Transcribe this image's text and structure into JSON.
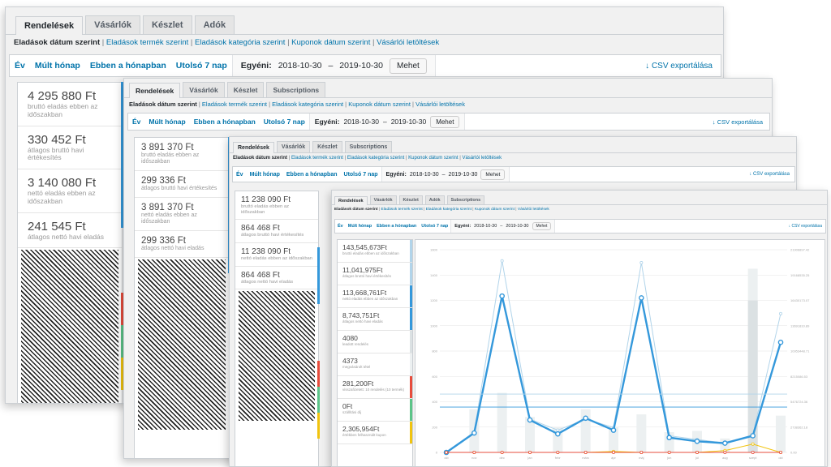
{
  "tabs": {
    "orders": "Rendelések",
    "customers": "Vásárlók",
    "stock": "Készlet",
    "taxes": "Adók",
    "subscriptions": "Subscriptions"
  },
  "subnav": {
    "by_date": "Eladások dátum szerint",
    "by_product": "Eladások termék szerint",
    "by_category": "Eladások kategória szerint",
    "coupons_by_date": "Kuponok dátum szerint",
    "customer_downloads": "Vásárlói letöltések",
    "separator": "|"
  },
  "range": {
    "year": "Év",
    "last_month": "Múlt hónap",
    "this_month": "Ebben a hónapban",
    "last_7_days": "Utolsó 7 nap",
    "custom_label": "Egyéni:",
    "date_from": "2018-10-30",
    "dash": "–",
    "date_to": "2019-10-30",
    "go_button": "Mehet",
    "csv_export": "↓ CSV exportálása"
  },
  "w1_legend": [
    {
      "value": "4 295 880 Ft",
      "desc": "bruttó eladás ebben az időszakban",
      "color": "#3498db"
    },
    {
      "value": "330 452 Ft",
      "desc": "átlagos bruttó havi értékesítés",
      "color": "#b1d4ea"
    },
    {
      "value": "3 140 080 Ft",
      "desc": "nettó eladás ebben az időszakban",
      "color": "#3498db"
    },
    {
      "value": "241 545 Ft",
      "desc": "átlagos nettó havi eladás",
      "color": "#b1d4ea"
    }
  ],
  "w2_legend": [
    {
      "value": "3 891 370 Ft",
      "desc": "bruttó eladás ebben az időszakban",
      "color": "#3498db"
    },
    {
      "value": "299 336 Ft",
      "desc": "átlagos bruttó havi értékesítés",
      "color": "#b1d4ea"
    },
    {
      "value": "3 891 370 Ft",
      "desc": "nettó eladás ebben az időszakban",
      "color": "#3498db"
    },
    {
      "value": "299 336 Ft",
      "desc": "átlagos nettó havi eladás",
      "color": "#b1d4ea"
    }
  ],
  "w3_legend": [
    {
      "value": "11 238 090 Ft",
      "desc": "bruttó eladás ebben az időszakban",
      "color": "#3498db"
    },
    {
      "value": "864 468 Ft",
      "desc": "átlagos bruttó havi értékesítés",
      "color": "#b1d4ea"
    },
    {
      "value": "11 238 090 Ft",
      "desc": "nettó eladás ebben az időszakban",
      "color": "#3498db"
    },
    {
      "value": "864 468 Ft",
      "desc": "átlagos nettó havi eladás",
      "color": "#b1d4ea"
    }
  ],
  "w4_legend": [
    {
      "value": "143,545,673Ft",
      "desc": "bruttó eladás ebben az időszakban",
      "color": "#b1d4ea"
    },
    {
      "value": "11,041,975Ft",
      "desc": "átlagos bruttó havi értékesítés",
      "color": "#b1d4ea"
    },
    {
      "value": "113,668,761Ft",
      "desc": "nettó eladás ebben az időszakban",
      "color": "#3498db"
    },
    {
      "value": "8,743,751Ft",
      "desc": "átlagos nettó havi eladás",
      "color": "#3498db"
    },
    {
      "value": "4080",
      "desc": "leadott rendelés",
      "color": "#dbe1e3"
    },
    {
      "value": "4373",
      "desc": "megvásárolt tétel",
      "color": "#ecf0f1"
    },
    {
      "value": "281,200Ft",
      "desc": "visszafizetett: 10 rendelés (10 termék)",
      "color": "#e74c3c"
    },
    {
      "value": "0Ft",
      "desc": "szállítási díj",
      "color": "#5cc488"
    },
    {
      "value": "2,305,954Ft",
      "desc": "értékben felhasznált kupon",
      "color": "#f1c40f"
    }
  ],
  "side_bars_colors": [
    "#e74c3c",
    "#5cc488",
    "#f1c40f"
  ],
  "chart_data": {
    "type": "line",
    "x": [
      "okt",
      "nov",
      "dec",
      "jan",
      "febr",
      "márc",
      "ápr",
      "máj",
      "jún",
      "júl",
      "aug",
      "szept",
      "okt"
    ],
    "y_left_ticks": [
      "0",
      "200",
      "400",
      "600",
      "800",
      "1000",
      "1200",
      "1400",
      "1600"
    ],
    "y_right_ticks": [
      "0.00",
      "2738362.18",
      "5476724.36",
      "8215086.53",
      "10953448.71",
      "13691810.89",
      "16430173.07",
      "19168535.25",
      "21906897.42"
    ],
    "y_left_range": [
      0,
      1600
    ],
    "y_right_range": [
      0,
      21906897.42
    ],
    "bars_orders": [
      0,
      340,
      470,
      280,
      200,
      340,
      200,
      300,
      160,
      170,
      110,
      1450,
      290
    ],
    "bars_items_extra": [
      0,
      0,
      0,
      0,
      0,
      0,
      0,
      0,
      0,
      0,
      0,
      1200,
      0
    ],
    "series": [
      {
        "name": "bruttó eladás",
        "color": "#b1d4ea",
        "values": [
          0,
          2200000,
          20700000,
          3600000,
          2400000,
          3600000,
          2700000,
          20500000,
          1800000,
          1400000,
          1000000,
          1900000,
          15000000
        ]
      },
      {
        "name": "nettó eladás",
        "color": "#3498db",
        "values": [
          0,
          2100000,
          16900000,
          3500000,
          2000000,
          3700000,
          2400000,
          16700000,
          1600000,
          1200000,
          1000000,
          1800000,
          11900000
        ]
      },
      {
        "name": "átlagos bruttó havi",
        "color": "#b1d4ea",
        "flat": 6300000
      },
      {
        "name": "átlagos nettó havi",
        "color": "#3498db",
        "flat": 4900000
      },
      {
        "name": "kupon",
        "color": "#f1c40f",
        "values": [
          0,
          0,
          0,
          0,
          0,
          0,
          100000,
          0,
          0,
          0,
          200000,
          900000,
          0
        ]
      },
      {
        "name": "visszafizetett",
        "color": "#e74c3c",
        "values": [
          0,
          0,
          0,
          0,
          0,
          0,
          0,
          0,
          0,
          0,
          0,
          0,
          0
        ]
      }
    ]
  }
}
